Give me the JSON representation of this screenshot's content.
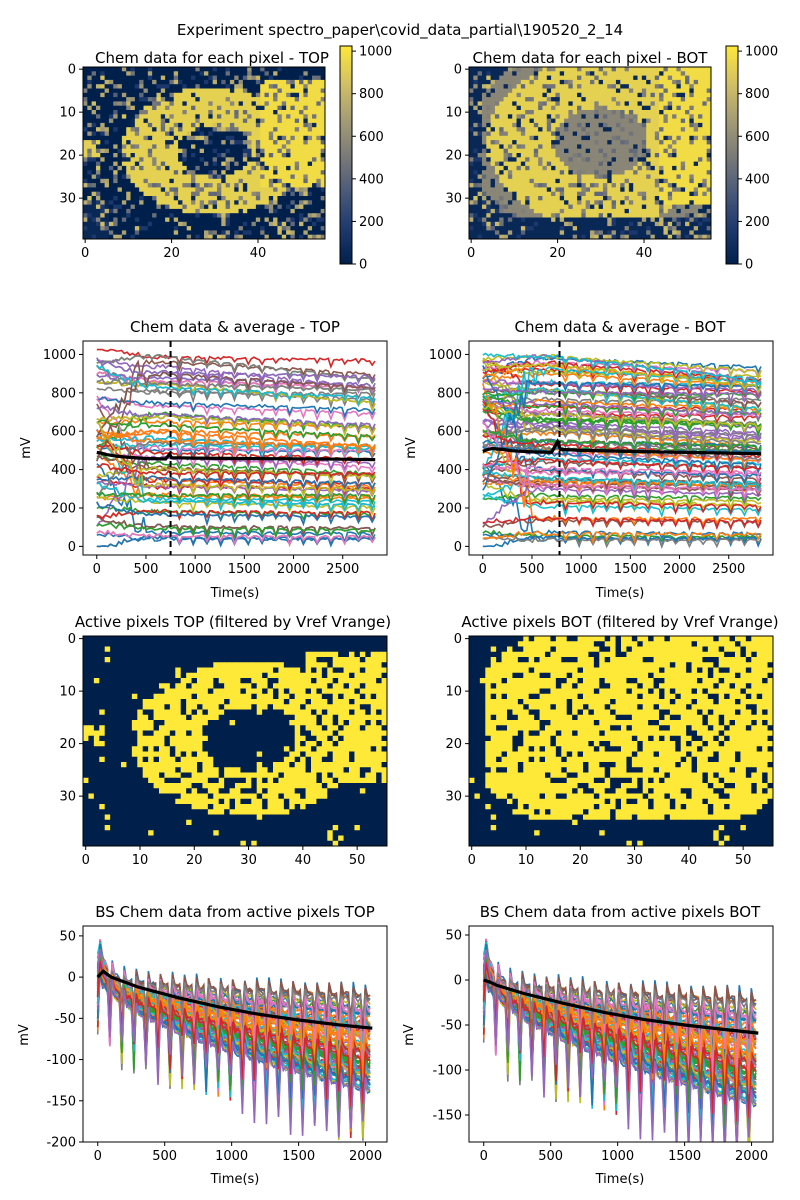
{
  "suptitle": "Experiment spectro_paper\\covid_data_partial\\190520_2_14",
  "colors": {
    "cmap": [
      "#00204c",
      "#1f3a6e",
      "#4b5a7a",
      "#7c7b78",
      "#a69d75",
      "#d3c164",
      "#fee838"
    ],
    "tab10": [
      "#1f77b4",
      "#ff7f0e",
      "#2ca02c",
      "#d62728",
      "#9467bd",
      "#8c564b",
      "#e377c2",
      "#7f7f7f",
      "#bcbd22",
      "#17becf"
    ],
    "mean_line": "#000000"
  },
  "chart_data": [
    {
      "id": "heat_top",
      "type": "heatmap",
      "title": "Chem data for each pixel - TOP",
      "grid_size": [
        40,
        56
      ],
      "xticks": [
        0,
        20,
        40
      ],
      "yticks": [
        0,
        10,
        20,
        30
      ],
      "colorbar": {
        "range": [
          0,
          1024
        ],
        "ticks": [
          0,
          200,
          400,
          600,
          800,
          1000
        ]
      },
      "pattern": "ring"
    },
    {
      "id": "heat_bot",
      "type": "heatmap",
      "title": "Chem data for each pixel - BOT",
      "grid_size": [
        40,
        56
      ],
      "xticks": [
        0,
        20,
        40
      ],
      "yticks": [
        0,
        10,
        20,
        30
      ],
      "colorbar": {
        "range": [
          0,
          1024
        ],
        "ticks": [
          0,
          200,
          400,
          600,
          800,
          1000
        ]
      },
      "pattern": "blob"
    },
    {
      "id": "line_top",
      "type": "line",
      "title": "Chem data & average - TOP",
      "xlabel": "Time(s)",
      "ylabel": "mV",
      "xlim": [
        -140,
        2950
      ],
      "ylim": [
        -45,
        1070
      ],
      "xticks": [
        0,
        500,
        1000,
        1500,
        2000,
        2500
      ],
      "yticks": [
        0,
        200,
        400,
        600,
        800,
        1000
      ],
      "vline_x": 750,
      "mean_series": {
        "x": [
          0,
          50,
          100,
          200,
          300,
          500,
          700,
          740,
          760,
          1000,
          1500,
          2000,
          2500,
          2830
        ],
        "y": [
          490,
          485,
          478,
          470,
          465,
          458,
          455,
          480,
          462,
          460,
          458,
          456,
          454,
          452
        ]
      }
    },
    {
      "id": "line_bot",
      "type": "line",
      "title": "Chem data & average - BOT",
      "xlabel": "Time(s)",
      "ylabel": "mV",
      "xlim": [
        -140,
        2950
      ],
      "ylim": [
        -45,
        1070
      ],
      "xticks": [
        0,
        500,
        1000,
        1500,
        2000,
        2500
      ],
      "yticks": [
        0,
        200,
        400,
        600,
        800,
        1000
      ],
      "vline_x": 780,
      "mean_series": {
        "x": [
          0,
          50,
          100,
          200,
          300,
          500,
          700,
          760,
          790,
          1000,
          1500,
          2000,
          2500,
          2830
        ],
        "y": [
          495,
          505,
          510,
          505,
          498,
          492,
          490,
          545,
          505,
          500,
          495,
          490,
          486,
          483
        ]
      }
    },
    {
      "id": "mask_top",
      "type": "heatmap",
      "title": "Active pixels TOP (filtered by Vref Vrange)",
      "grid_size": [
        40,
        56
      ],
      "xticks": [
        0,
        10,
        20,
        30,
        40,
        50
      ],
      "yticks": [
        0,
        10,
        20,
        30
      ],
      "pattern": "mask_ring"
    },
    {
      "id": "mask_bot",
      "type": "heatmap",
      "title": "Active pixels BOT (filtered by Vref Vrange)",
      "grid_size": [
        40,
        56
      ],
      "xticks": [
        0,
        10,
        20,
        30,
        40,
        50
      ],
      "yticks": [
        0,
        10,
        20,
        30
      ],
      "pattern": "mask_blob"
    },
    {
      "id": "bs_top",
      "type": "line",
      "title": "BS Chem data from active pixels TOP",
      "xlabel": "Time(s)",
      "ylabel": "mV",
      "xlim": [
        -110,
        2160
      ],
      "ylim": [
        -200,
        62
      ],
      "xticks": [
        0,
        500,
        1000,
        1500,
        2000
      ],
      "yticks": [
        -200,
        -150,
        -100,
        -50,
        0,
        50
      ],
      "mean_series": {
        "x": [
          0,
          40,
          100,
          300,
          600,
          900,
          1200,
          1500,
          1800,
          2050
        ],
        "y": [
          0,
          7,
          0,
          -12,
          -25,
          -36,
          -45,
          -52,
          -58,
          -62
        ]
      }
    },
    {
      "id": "bs_bot",
      "type": "line",
      "title": "BS Chem data from active pixels BOT",
      "xlabel": "Time(s)",
      "ylabel": "mV",
      "xlim": [
        -110,
        2160
      ],
      "ylim": [
        -180,
        60
      ],
      "xticks": [
        0,
        500,
        1000,
        1500,
        2000
      ],
      "yticks": [
        -150,
        -100,
        -50,
        0,
        50
      ],
      "mean_series": {
        "x": [
          0,
          40,
          100,
          300,
          600,
          900,
          1200,
          1500,
          1800,
          2050
        ],
        "y": [
          0,
          -2,
          -6,
          -15,
          -26,
          -36,
          -44,
          -50,
          -55,
          -59
        ]
      }
    }
  ]
}
